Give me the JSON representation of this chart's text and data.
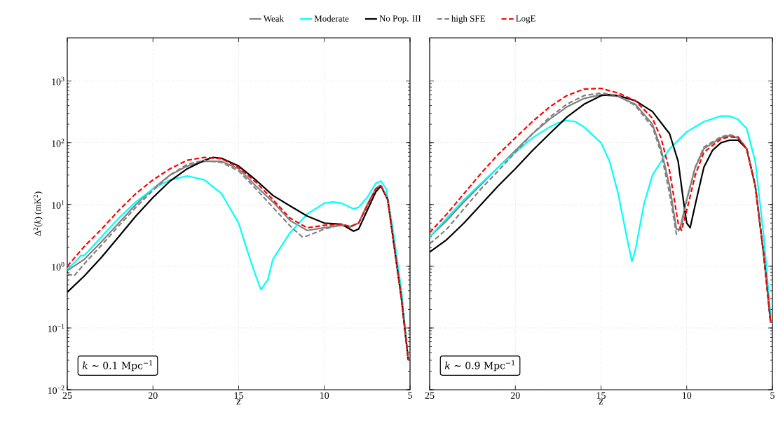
{
  "chart_data": [
    {
      "type": "line",
      "xlabel": "z",
      "ylabel": "Δ$^{2}$(*k*) (mK$^{2}$)",
      "annotations": [
        "*k* ∼ 0.1 Mpc$^{−1}$"
      ],
      "xlim": [
        25,
        5
      ],
      "xticks": [
        25,
        20,
        15,
        10,
        5
      ],
      "ylim": [
        0.01,
        5000
      ],
      "yticks": [
        {
          "value": 0.01,
          "label": "10$^{−2}$"
        },
        {
          "value": 0.1,
          "label": "10$^{−1}$"
        },
        {
          "value": 1,
          "label": "10$^{0}$"
        },
        {
          "value": 10,
          "label": "10$^{1}$"
        },
        {
          "value": 100,
          "label": "10$^{2}$"
        },
        {
          "value": 1000,
          "label": "10$^{3}$"
        }
      ],
      "log": "y",
      "grid": true,
      "legend": "top",
      "series": [
        {
          "name": "Weak",
          "color": "#808080",
          "x": [
            25,
            24,
            23,
            22,
            21,
            20,
            19,
            18,
            17,
            16,
            15,
            14,
            13,
            12,
            11,
            10,
            9,
            8.5,
            8,
            7.5,
            7,
            6.7,
            6.3,
            6,
            5.5,
            5.1
          ],
          "values": [
            0.85,
            1.3,
            2.5,
            5,
            10,
            18,
            30,
            42,
            50,
            50,
            38,
            20,
            11,
            5.5,
            3.8,
            4.2,
            4.6,
            4.3,
            5,
            10,
            18,
            20,
            12,
            3,
            0.3,
            0.03
          ]
        },
        {
          "name": "Moderate",
          "color": "#00ffff",
          "x": [
            25,
            24.5,
            24.2,
            24,
            23,
            22,
            21,
            20,
            19,
            18,
            17,
            16,
            15,
            14.5,
            14,
            13.7,
            13.3,
            13,
            12,
            11,
            10,
            9.5,
            9,
            8.3,
            8,
            7.5,
            7,
            6.7,
            6.4,
            6,
            5.5,
            5.1
          ],
          "values": [
            0.9,
            1.2,
            1.5,
            1.5,
            3,
            6,
            11,
            18,
            25,
            29,
            25,
            15,
            5,
            1.8,
            0.7,
            0.42,
            0.6,
            1.3,
            3.5,
            7,
            10.5,
            11,
            10.5,
            8.5,
            9,
            13,
            22,
            24,
            18,
            4,
            0.4,
            0.03
          ]
        },
        {
          "name": "No Pop. III",
          "color": "#000000",
          "x": [
            25,
            24,
            23,
            22,
            21,
            20,
            19,
            18,
            17,
            16.5,
            16,
            15,
            14,
            13,
            12,
            11,
            10,
            9,
            8.3,
            8,
            7.5,
            7,
            6.7,
            6.3,
            6,
            5.5,
            5.1
          ],
          "values": [
            0.38,
            0.7,
            1.4,
            3,
            6.5,
            13,
            24,
            38,
            52,
            58,
            56,
            42,
            25,
            14,
            9.5,
            6.5,
            5,
            4.8,
            3.7,
            4,
            8,
            16,
            20,
            12,
            3,
            0.3,
            0.03
          ]
        },
        {
          "name": "high SFE",
          "color": "#808080",
          "line_style": "dashed",
          "x": [
            25,
            24.6,
            24,
            23,
            22,
            21,
            20,
            19,
            18,
            17,
            16,
            15,
            14,
            13,
            12,
            11.3,
            11,
            10,
            9,
            8.5,
            8,
            7,
            6.7,
            6.3,
            6,
            5.5,
            5.1
          ],
          "values": [
            0.75,
            0.7,
            1.1,
            2.2,
            4.5,
            9,
            17,
            30,
            45,
            52,
            48,
            35,
            18,
            9,
            4.5,
            3,
            3.1,
            4,
            4.7,
            4.4,
            5,
            18,
            21,
            12,
            3,
            0.3,
            0.03
          ]
        },
        {
          "name": "LogE",
          "color": "#ff0000",
          "line_style": "dashed",
          "x": [
            25,
            24,
            23,
            22,
            21,
            20,
            19,
            18,
            17,
            16,
            15,
            14,
            13,
            12,
            11,
            10,
            9,
            8.5,
            8,
            7,
            6.7,
            6.3,
            6,
            5.5,
            5.1
          ],
          "values": [
            1.0,
            2.1,
            4,
            8,
            15,
            25,
            38,
            52,
            58,
            55,
            40,
            23,
            12,
            6,
            4.2,
            4.6,
            4.8,
            4.4,
            5,
            18,
            20,
            12,
            3,
            0.3,
            0.03
          ]
        }
      ]
    },
    {
      "type": "line",
      "xlabel": "z",
      "annotations": [
        "*k* ∼ 0.9 Mpc$^{−1}$"
      ],
      "xlim": [
        25,
        5
      ],
      "xticks": [
        25,
        20,
        15,
        10,
        5
      ],
      "ylim": [
        0.01,
        5000
      ],
      "yticks": [
        {
          "value": 0.01,
          "label": null
        },
        {
          "value": 0.1,
          "label": null
        },
        {
          "value": 1,
          "label": null
        },
        {
          "value": 10,
          "label": null
        },
        {
          "value": 100,
          "label": null
        },
        {
          "value": 1000,
          "label": null
        }
      ],
      "log": "y",
      "grid": true,
      "tick_labels": "x",
      "series": [
        {
          "color": "#808080",
          "x": [
            25,
            24,
            23,
            22,
            21,
            20,
            19,
            18,
            17,
            16,
            15,
            14,
            13,
            12,
            11.5,
            11,
            10.6,
            10.4,
            10,
            9.5,
            9,
            8,
            7.5,
            7,
            6.5,
            6,
            5.5,
            5.1
          ],
          "values": [
            3.0,
            5.5,
            11,
            null,
            40,
            75,
            140,
            240,
            380,
            520,
            600,
            560,
            420,
            200,
            80,
            20,
            4,
            4,
            12,
            40,
            80,
            120,
            130,
            120,
            80,
            20,
            1.5,
            0.12
          ]
        },
        {
          "color": "#00ffff",
          "x": [
            25,
            24,
            23,
            22,
            21,
            20,
            19,
            18,
            17.5,
            17,
            16.5,
            16,
            15,
            14.5,
            14,
            13.5,
            13.2,
            13,
            12.5,
            12,
            11,
            10,
            9,
            8,
            7.5,
            7,
            6.5,
            6,
            5.5,
            5.1
          ],
          "values": [
            3.0,
            6,
            12,
            22,
            40,
            70,
            120,
            180,
            210,
            230,
            220,
            180,
            100,
            50,
            15,
            3,
            1.2,
            1.8,
            10,
            30,
            80,
            150,
            220,
            270,
            270,
            240,
            170,
            50,
            3,
            0.15
          ]
        },
        {
          "color": "#000000",
          "x": [
            25,
            24,
            23,
            22,
            21,
            20,
            19,
            18,
            17,
            16,
            15,
            14.5,
            14,
            13,
            12,
            11,
            10.5,
            10.2,
            10,
            9.8,
            9.5,
            9,
            8.5,
            8,
            7.5,
            7,
            6.5,
            6,
            5.5,
            5.1
          ],
          "values": [
            1.7,
            2.7,
            5,
            10,
            20,
            38,
            75,
            140,
            260,
            420,
            580,
            600,
            580,
            480,
            320,
            140,
            50,
            12,
            5,
            4.2,
            10,
            40,
            75,
            100,
            110,
            110,
            80,
            20,
            1.5,
            0.12
          ]
        },
        {
          "color": "#808080",
          "line_style": "dashed",
          "x": [
            25,
            24,
            23,
            22,
            21,
            20,
            19,
            18,
            17,
            16,
            15,
            14,
            13,
            12,
            11.5,
            11,
            10.6,
            10.3,
            10,
            9.5,
            9,
            8,
            7.5,
            7,
            6.5,
            6,
            5.5,
            5.1
          ],
          "values": [
            2.3,
            4,
            8.5,
            18,
            35,
            70,
            140,
            260,
            420,
            580,
            640,
            580,
            400,
            180,
            70,
            15,
            3.3,
            4.5,
            12,
            40,
            85,
            125,
            135,
            125,
            80,
            20,
            1.5,
            0.12
          ]
        },
        {
          "color": "#ff0000",
          "line_style": "dashed",
          "x": [
            25,
            24,
            23,
            22,
            21,
            20,
            19,
            18,
            17,
            16,
            15,
            14.7,
            14,
            13,
            12,
            11.5,
            11,
            10.5,
            10.3,
            10,
            9.5,
            9,
            8,
            7.5,
            7,
            6.5,
            6,
            5.5,
            5.1
          ],
          "values": [
            3.5,
            7,
            15,
            32,
            65,
            120,
            220,
            380,
            580,
            740,
            760,
            720,
            640,
            480,
            250,
            120,
            35,
            5,
            3.8,
            8,
            30,
            70,
            115,
            125,
            120,
            80,
            20,
            1.5,
            0.12
          ]
        }
      ]
    }
  ]
}
